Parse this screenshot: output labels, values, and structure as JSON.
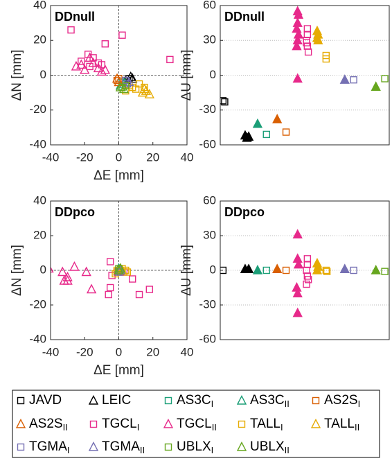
{
  "chart_data": [
    {
      "type": "scatter",
      "title": "DDnull",
      "xlabel": "ΔE [mm]",
      "ylabel": "ΔN [mm]",
      "xlim": [
        -40,
        40
      ],
      "xticks": [
        -40,
        -20,
        0,
        20,
        40
      ],
      "ylim": [
        -40,
        40
      ],
      "yticks": [
        -40,
        -20,
        0,
        20,
        40
      ],
      "crosshair": true,
      "series": [
        {
          "x": [
            5,
            6
          ],
          "values": [
            -3,
            -2
          ]
        },
        {
          "x": [
            7,
            8
          ],
          "values": [
            -1,
            -2
          ]
        },
        {
          "x": [
            2
          ],
          "values": [
            -4
          ]
        },
        {
          "x": [
            1,
            3
          ],
          "values": [
            -6,
            -5
          ]
        },
        {
          "x": [
            -1,
            0
          ],
          "values": [
            -3,
            -2
          ]
        },
        {
          "x": [
            0,
            -1
          ],
          "values": [
            -4,
            -2
          ]
        },
        {
          "x": [
            -28,
            -18,
            -12,
            -22,
            -15,
            -8,
            2,
            30,
            -10,
            -17
          ],
          "values": [
            26,
            12,
            7,
            8,
            10,
            18,
            23,
            9,
            6,
            5
          ]
        },
        {
          "x": [
            -25,
            -20,
            -15,
            -12,
            -10,
            -17,
            -22,
            -8
          ],
          "values": [
            5,
            3,
            7,
            4,
            2,
            10,
            6,
            3
          ]
        },
        {
          "x": [
            4,
            8,
            12,
            10,
            15,
            6
          ],
          "values": [
            -9,
            -7,
            -5,
            -8,
            -7,
            -6
          ]
        },
        {
          "x": [
            14,
            16,
            18,
            15
          ],
          "values": [
            -10,
            -9,
            -11,
            -8
          ]
        },
        {
          "x": [
            4,
            5
          ],
          "values": [
            -3,
            -5
          ]
        },
        {
          "x": [
            6
          ],
          "values": [
            -4
          ]
        },
        {
          "x": [
            2,
            4
          ],
          "values": [
            -7,
            -6
          ]
        },
        {
          "x": [
            3,
            1
          ],
          "values": [
            -8,
            -7
          ]
        }
      ]
    },
    {
      "type": "scatter",
      "title": "DDnull",
      "ylabel": "ΔU [mm]",
      "xlim": [
        0,
        19
      ],
      "ylim": [
        -60,
        60
      ],
      "yticks": [
        -60,
        -30,
        0,
        30,
        60
      ],
      "grid": true,
      "filled_triangles": true,
      "series": [
        {
          "x": [
            0.3,
            0.5
          ],
          "values": [
            -22,
            -23
          ]
        },
        {
          "x": [
            2.8,
            3,
            3.2
          ],
          "values": [
            -52,
            -54,
            -53
          ]
        },
        {
          "x": [
            5.2
          ],
          "values": [
            -51
          ]
        },
        {
          "x": [
            4.2
          ],
          "values": [
            -42
          ]
        },
        {
          "x": [
            7.4
          ],
          "values": [
            -49
          ]
        },
        {
          "x": [
            6.4
          ],
          "values": [
            -38
          ]
        },
        {
          "x": [
            9.8,
            9.8,
            9.7,
            9.8,
            9.9,
            9.7
          ],
          "values": [
            40,
            35,
            30,
            25,
            20,
            28
          ]
        },
        {
          "x": [
            8.7,
            8.8,
            8.7,
            8.6,
            8.8,
            8.7,
            8.6,
            8.7
          ],
          "values": [
            55,
            52,
            45,
            40,
            35,
            30,
            25,
            -3
          ]
        },
        {
          "x": [
            11.9,
            11.9
          ],
          "values": [
            17,
            14
          ]
        },
        {
          "x": [
            10.9,
            11,
            10.9,
            11
          ],
          "values": [
            38,
            35,
            32,
            30
          ]
        },
        {
          "x": [
            15
          ],
          "values": [
            -4
          ]
        },
        {
          "x": [
            14
          ],
          "values": [
            -4
          ]
        },
        {
          "x": [
            18.5
          ],
          "values": [
            -3
          ]
        },
        {
          "x": [
            17.5
          ],
          "values": [
            -10
          ]
        }
      ]
    },
    {
      "type": "scatter",
      "title": "DDpco",
      "xlabel": "ΔE [mm]",
      "ylabel": "ΔN [mm]",
      "xlim": [
        -40,
        40
      ],
      "xticks": [
        -40,
        -20,
        0,
        20,
        40
      ],
      "ylim": [
        -40,
        40
      ],
      "yticks": [
        -40,
        -20,
        0,
        20,
        40
      ],
      "crosshair": true,
      "series": [
        {
          "x": [
            0
          ],
          "values": [
            0
          ]
        },
        {
          "x": [
            0
          ],
          "values": [
            0
          ]
        },
        {
          "x": [
            1
          ],
          "values": [
            -1
          ]
        },
        {
          "x": [
            0
          ],
          "values": [
            1
          ]
        },
        {
          "x": [
            -1
          ],
          "values": [
            -1
          ]
        },
        {
          "x": [
            0
          ],
          "values": [
            0
          ]
        },
        {
          "x": [
            -5,
            -4,
            -5,
            -6,
            3,
            8,
            12,
            18
          ],
          "values": [
            5,
            -3,
            -10,
            -14,
            -1,
            -5,
            -14,
            -11
          ]
        },
        {
          "x": [
            -41,
            -33,
            -32,
            -30,
            -26,
            -19,
            -16,
            -30
          ],
          "values": [
            1,
            -1,
            -6,
            -6,
            2,
            -1,
            -11,
            -4
          ]
        },
        {
          "x": [
            -2,
            2,
            4,
            5,
            -1
          ],
          "values": [
            -2,
            1,
            0,
            -1,
            0
          ]
        },
        {
          "x": [
            1,
            2
          ],
          "values": [
            1,
            0
          ]
        },
        {
          "x": [
            0
          ],
          "values": [
            -1
          ]
        },
        {
          "x": [
            1
          ],
          "values": [
            0
          ]
        },
        {
          "x": [
            0
          ],
          "values": [
            1
          ]
        },
        {
          "x": [
            0,
            1
          ],
          "values": [
            0,
            1
          ]
        }
      ]
    },
    {
      "type": "scatter",
      "title": "DDpco",
      "ylabel": "ΔU [mm]",
      "xlim": [
        0,
        19
      ],
      "ylim": [
        -60,
        60
      ],
      "yticks": [
        -60,
        -30,
        0,
        30,
        60
      ],
      "grid": true,
      "filled_triangles": true,
      "series": [
        {
          "x": [
            0.3
          ],
          "values": [
            0
          ]
        },
        {
          "x": [
            2.8,
            3.2
          ],
          "values": [
            1,
            1
          ]
        },
        {
          "x": [
            5.2
          ],
          "values": [
            0
          ]
        },
        {
          "x": [
            4.2
          ],
          "values": [
            0
          ]
        },
        {
          "x": [
            7.4
          ],
          "values": [
            0
          ]
        },
        {
          "x": [
            6.4
          ],
          "values": [
            1
          ]
        },
        {
          "x": [
            9.8,
            9.8,
            9.7,
            9.8,
            9.9,
            9.7
          ],
          "values": [
            10,
            5,
            0,
            -5,
            -8,
            -12
          ]
        },
        {
          "x": [
            8.7,
            8.7,
            8.8,
            8.6,
            8.7,
            8.7
          ],
          "values": [
            31,
            10,
            5,
            -15,
            -20,
            -37
          ]
        },
        {
          "x": [
            11.9,
            12
          ],
          "values": [
            0,
            -1
          ]
        },
        {
          "x": [
            10.9,
            11,
            10.9
          ],
          "values": [
            6,
            3,
            0
          ]
        },
        {
          "x": [
            15
          ],
          "values": [
            0
          ]
        },
        {
          "x": [
            14
          ],
          "values": [
            1
          ]
        },
        {
          "x": [
            18.5
          ],
          "values": [
            -1
          ]
        },
        {
          "x": [
            17.5
          ],
          "values": [
            0
          ]
        }
      ]
    }
  ],
  "legend": {
    "entries": [
      {
        "name": "JAVD",
        "color": "#000000",
        "marker": "square"
      },
      {
        "name": "LEIC",
        "color": "#000000",
        "marker": "triangle"
      },
      {
        "name": "AS3C",
        "subscript": "I",
        "color": "#1b9e77",
        "marker": "square"
      },
      {
        "name": "AS3C",
        "subscript": "II",
        "color": "#1b9e77",
        "marker": "triangle"
      },
      {
        "name": "AS2S",
        "subscript": "I",
        "color": "#d95f02",
        "marker": "square"
      },
      {
        "name": "AS2S",
        "subscript": "II",
        "color": "#d95f02",
        "marker": "triangle"
      },
      {
        "name": "TGCL",
        "subscript": "I",
        "color": "#e7298a",
        "marker": "square"
      },
      {
        "name": "TGCL",
        "subscript": "II",
        "color": "#e7298a",
        "marker": "triangle"
      },
      {
        "name": "TALL",
        "subscript": "I",
        "color": "#e6ab02",
        "marker": "square"
      },
      {
        "name": "TALL",
        "subscript": "II",
        "color": "#e6ab02",
        "marker": "triangle"
      },
      {
        "name": "TGMA",
        "subscript": "I",
        "color": "#7570b3",
        "marker": "square"
      },
      {
        "name": "TGMA",
        "subscript": "II",
        "color": "#7570b3",
        "marker": "triangle"
      },
      {
        "name": "UBLX",
        "subscript": "I",
        "color": "#66a61e",
        "marker": "square"
      },
      {
        "name": "UBLX",
        "subscript": "II",
        "color": "#66a61e",
        "marker": "triangle"
      }
    ]
  }
}
